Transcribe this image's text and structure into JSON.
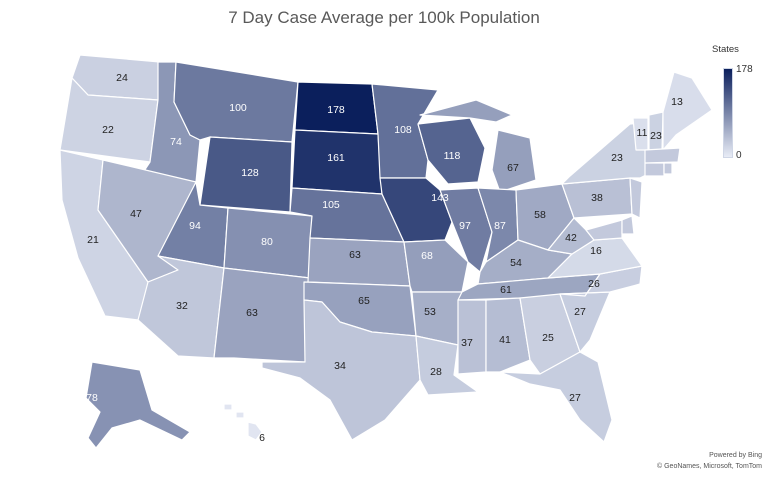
{
  "title": "7 Day Case Average per 100k Population",
  "legend": {
    "title": "States",
    "max": "178",
    "min": "0",
    "color_low": "#e8ecf6",
    "color_high": "#0b1f5c"
  },
  "credits": {
    "powered": "Powered by Bing",
    "sources": "© GeoNames, Microsoft, TomTom"
  },
  "states": [
    {
      "id": "WA",
      "value": 24
    },
    {
      "id": "OR",
      "value": 22
    },
    {
      "id": "CA",
      "value": 21
    },
    {
      "id": "ID",
      "value": 74
    },
    {
      "id": "NV",
      "value": 47
    },
    {
      "id": "MT",
      "value": 100
    },
    {
      "id": "WY",
      "value": 128
    },
    {
      "id": "UT",
      "value": 94
    },
    {
      "id": "AZ",
      "value": 32
    },
    {
      "id": "CO",
      "value": 80
    },
    {
      "id": "NM",
      "value": 63
    },
    {
      "id": "ND",
      "value": 178
    },
    {
      "id": "SD",
      "value": 161
    },
    {
      "id": "NE",
      "value": 105
    },
    {
      "id": "KS",
      "value": 63
    },
    {
      "id": "OK",
      "value": 65
    },
    {
      "id": "TX",
      "value": 34
    },
    {
      "id": "MN",
      "value": 108
    },
    {
      "id": "IA",
      "value": 143
    },
    {
      "id": "MO",
      "value": 68
    },
    {
      "id": "AR",
      "value": 53
    },
    {
      "id": "LA",
      "value": 28
    },
    {
      "id": "WI",
      "value": 118
    },
    {
      "id": "IL",
      "value": 97
    },
    {
      "id": "MI",
      "value": 67
    },
    {
      "id": "IN",
      "value": 87
    },
    {
      "id": "OH",
      "value": 58
    },
    {
      "id": "KY",
      "value": 54
    },
    {
      "id": "TN",
      "value": 61
    },
    {
      "id": "MS",
      "value": 37
    },
    {
      "id": "AL",
      "value": 41
    },
    {
      "id": "GA",
      "value": 25
    },
    {
      "id": "FL",
      "value": 27
    },
    {
      "id": "SC",
      "value": 27
    },
    {
      "id": "NC",
      "value": 26
    },
    {
      "id": "VA",
      "value": 16
    },
    {
      "id": "WV",
      "value": 42
    },
    {
      "id": "PA",
      "value": 38
    },
    {
      "id": "NY",
      "value": 23
    },
    {
      "id": "VT",
      "value": 11
    },
    {
      "id": "NH",
      "value": 23
    },
    {
      "id": "ME",
      "value": 13
    },
    {
      "id": "AK",
      "value": 78
    },
    {
      "id": "HI",
      "value": 6
    },
    {
      "id": "MD",
      "value": null
    },
    {
      "id": "DE",
      "value": null
    },
    {
      "id": "NJ",
      "value": null
    },
    {
      "id": "CT",
      "value": null
    },
    {
      "id": "RI",
      "value": null
    },
    {
      "id": "MA",
      "value": null
    }
  ]
}
